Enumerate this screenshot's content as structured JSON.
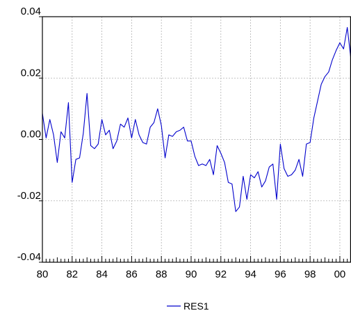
{
  "chart_data": {
    "type": "line",
    "title": "",
    "xlabel": "",
    "ylabel": "",
    "xlim": [
      1980,
      2000.75
    ],
    "ylim": [
      -0.04,
      0.04
    ],
    "y_tick_labels": [
      "0.04",
      "0.02",
      "0.00",
      "-0.02",
      "-0.04"
    ],
    "y_ticks": [
      0.04,
      0.02,
      0.0,
      -0.02,
      -0.04
    ],
    "x_tick_labels": [
      "80",
      "82",
      "84",
      "86",
      "88",
      "90",
      "92",
      "94",
      "96",
      "98",
      "00"
    ],
    "x_ticks": [
      1980,
      1982,
      1984,
      1986,
      1988,
      1990,
      1992,
      1994,
      1996,
      1998,
      2000
    ],
    "grid": true,
    "legend_position": "bottom-center",
    "series": [
      {
        "name": "RES1",
        "color": "#0000cc",
        "x_start": 1980,
        "x_step": 0.25,
        "values": [
          0.0085,
          0.0005,
          0.0065,
          0.0015,
          -0.0075,
          0.0025,
          0.0005,
          0.012,
          -0.014,
          -0.0065,
          -0.006,
          0.002,
          0.015,
          -0.002,
          -0.003,
          -0.0015,
          0.0065,
          0.0015,
          0.003,
          -0.003,
          -0.0005,
          0.005,
          0.004,
          0.007,
          0.0005,
          0.0065,
          0.0015,
          -0.001,
          -0.0015,
          0.004,
          0.0055,
          0.01,
          0.0045,
          -0.006,
          0.0015,
          0.001,
          0.0025,
          0.003,
          0.004,
          -0.0005,
          -0.0005,
          -0.0055,
          -0.0085,
          -0.008,
          -0.0085,
          -0.0065,
          -0.0115,
          -0.002,
          -0.0045,
          -0.0075,
          -0.014,
          -0.0145,
          -0.0235,
          -0.022,
          -0.012,
          -0.0195,
          -0.0115,
          -0.0125,
          -0.0105,
          -0.0155,
          -0.0135,
          -0.009,
          -0.008,
          -0.0195,
          -0.0015,
          -0.0095,
          -0.012,
          -0.0115,
          -0.01,
          -0.0065,
          -0.012,
          -0.0015,
          -0.001,
          0.007,
          0.0125,
          0.018,
          0.0205,
          0.022,
          0.026,
          0.029,
          0.0315,
          0.0295,
          0.0365,
          0.026
        ]
      }
    ]
  }
}
